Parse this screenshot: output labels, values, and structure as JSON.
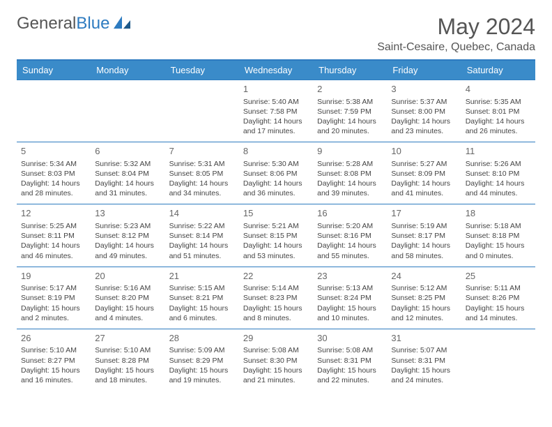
{
  "logo": {
    "text_general": "General",
    "text_blue": "Blue"
  },
  "header": {
    "month_title": "May 2024",
    "location": "Saint-Cesaire, Quebec, Canada"
  },
  "colors": {
    "header_bg": "#3a8bc9",
    "header_border": "#2d7bc0",
    "row_border": "#2d7bc0",
    "text": "#444444",
    "daynum": "#666666"
  },
  "weekdays": [
    "Sunday",
    "Monday",
    "Tuesday",
    "Wednesday",
    "Thursday",
    "Friday",
    "Saturday"
  ],
  "weeks": [
    [
      null,
      null,
      null,
      {
        "d": "1",
        "sr": "5:40 AM",
        "ss": "7:58 PM",
        "dl1": "Daylight: 14 hours",
        "dl2": "and 17 minutes."
      },
      {
        "d": "2",
        "sr": "5:38 AM",
        "ss": "7:59 PM",
        "dl1": "Daylight: 14 hours",
        "dl2": "and 20 minutes."
      },
      {
        "d": "3",
        "sr": "5:37 AM",
        "ss": "8:00 PM",
        "dl1": "Daylight: 14 hours",
        "dl2": "and 23 minutes."
      },
      {
        "d": "4",
        "sr": "5:35 AM",
        "ss": "8:01 PM",
        "dl1": "Daylight: 14 hours",
        "dl2": "and 26 minutes."
      }
    ],
    [
      {
        "d": "5",
        "sr": "5:34 AM",
        "ss": "8:03 PM",
        "dl1": "Daylight: 14 hours",
        "dl2": "and 28 minutes."
      },
      {
        "d": "6",
        "sr": "5:32 AM",
        "ss": "8:04 PM",
        "dl1": "Daylight: 14 hours",
        "dl2": "and 31 minutes."
      },
      {
        "d": "7",
        "sr": "5:31 AM",
        "ss": "8:05 PM",
        "dl1": "Daylight: 14 hours",
        "dl2": "and 34 minutes."
      },
      {
        "d": "8",
        "sr": "5:30 AM",
        "ss": "8:06 PM",
        "dl1": "Daylight: 14 hours",
        "dl2": "and 36 minutes."
      },
      {
        "d": "9",
        "sr": "5:28 AM",
        "ss": "8:08 PM",
        "dl1": "Daylight: 14 hours",
        "dl2": "and 39 minutes."
      },
      {
        "d": "10",
        "sr": "5:27 AM",
        "ss": "8:09 PM",
        "dl1": "Daylight: 14 hours",
        "dl2": "and 41 minutes."
      },
      {
        "d": "11",
        "sr": "5:26 AM",
        "ss": "8:10 PM",
        "dl1": "Daylight: 14 hours",
        "dl2": "and 44 minutes."
      }
    ],
    [
      {
        "d": "12",
        "sr": "5:25 AM",
        "ss": "8:11 PM",
        "dl1": "Daylight: 14 hours",
        "dl2": "and 46 minutes."
      },
      {
        "d": "13",
        "sr": "5:23 AM",
        "ss": "8:12 PM",
        "dl1": "Daylight: 14 hours",
        "dl2": "and 49 minutes."
      },
      {
        "d": "14",
        "sr": "5:22 AM",
        "ss": "8:14 PM",
        "dl1": "Daylight: 14 hours",
        "dl2": "and 51 minutes."
      },
      {
        "d": "15",
        "sr": "5:21 AM",
        "ss": "8:15 PM",
        "dl1": "Daylight: 14 hours",
        "dl2": "and 53 minutes."
      },
      {
        "d": "16",
        "sr": "5:20 AM",
        "ss": "8:16 PM",
        "dl1": "Daylight: 14 hours",
        "dl2": "and 55 minutes."
      },
      {
        "d": "17",
        "sr": "5:19 AM",
        "ss": "8:17 PM",
        "dl1": "Daylight: 14 hours",
        "dl2": "and 58 minutes."
      },
      {
        "d": "18",
        "sr": "5:18 AM",
        "ss": "8:18 PM",
        "dl1": "Daylight: 15 hours",
        "dl2": "and 0 minutes."
      }
    ],
    [
      {
        "d": "19",
        "sr": "5:17 AM",
        "ss": "8:19 PM",
        "dl1": "Daylight: 15 hours",
        "dl2": "and 2 minutes."
      },
      {
        "d": "20",
        "sr": "5:16 AM",
        "ss": "8:20 PM",
        "dl1": "Daylight: 15 hours",
        "dl2": "and 4 minutes."
      },
      {
        "d": "21",
        "sr": "5:15 AM",
        "ss": "8:21 PM",
        "dl1": "Daylight: 15 hours",
        "dl2": "and 6 minutes."
      },
      {
        "d": "22",
        "sr": "5:14 AM",
        "ss": "8:23 PM",
        "dl1": "Daylight: 15 hours",
        "dl2": "and 8 minutes."
      },
      {
        "d": "23",
        "sr": "5:13 AM",
        "ss": "8:24 PM",
        "dl1": "Daylight: 15 hours",
        "dl2": "and 10 minutes."
      },
      {
        "d": "24",
        "sr": "5:12 AM",
        "ss": "8:25 PM",
        "dl1": "Daylight: 15 hours",
        "dl2": "and 12 minutes."
      },
      {
        "d": "25",
        "sr": "5:11 AM",
        "ss": "8:26 PM",
        "dl1": "Daylight: 15 hours",
        "dl2": "and 14 minutes."
      }
    ],
    [
      {
        "d": "26",
        "sr": "5:10 AM",
        "ss": "8:27 PM",
        "dl1": "Daylight: 15 hours",
        "dl2": "and 16 minutes."
      },
      {
        "d": "27",
        "sr": "5:10 AM",
        "ss": "8:28 PM",
        "dl1": "Daylight: 15 hours",
        "dl2": "and 18 minutes."
      },
      {
        "d": "28",
        "sr": "5:09 AM",
        "ss": "8:29 PM",
        "dl1": "Daylight: 15 hours",
        "dl2": "and 19 minutes."
      },
      {
        "d": "29",
        "sr": "5:08 AM",
        "ss": "8:30 PM",
        "dl1": "Daylight: 15 hours",
        "dl2": "and 21 minutes."
      },
      {
        "d": "30",
        "sr": "5:08 AM",
        "ss": "8:31 PM",
        "dl1": "Daylight: 15 hours",
        "dl2": "and 22 minutes."
      },
      {
        "d": "31",
        "sr": "5:07 AM",
        "ss": "8:31 PM",
        "dl1": "Daylight: 15 hours",
        "dl2": "and 24 minutes."
      },
      null
    ]
  ]
}
